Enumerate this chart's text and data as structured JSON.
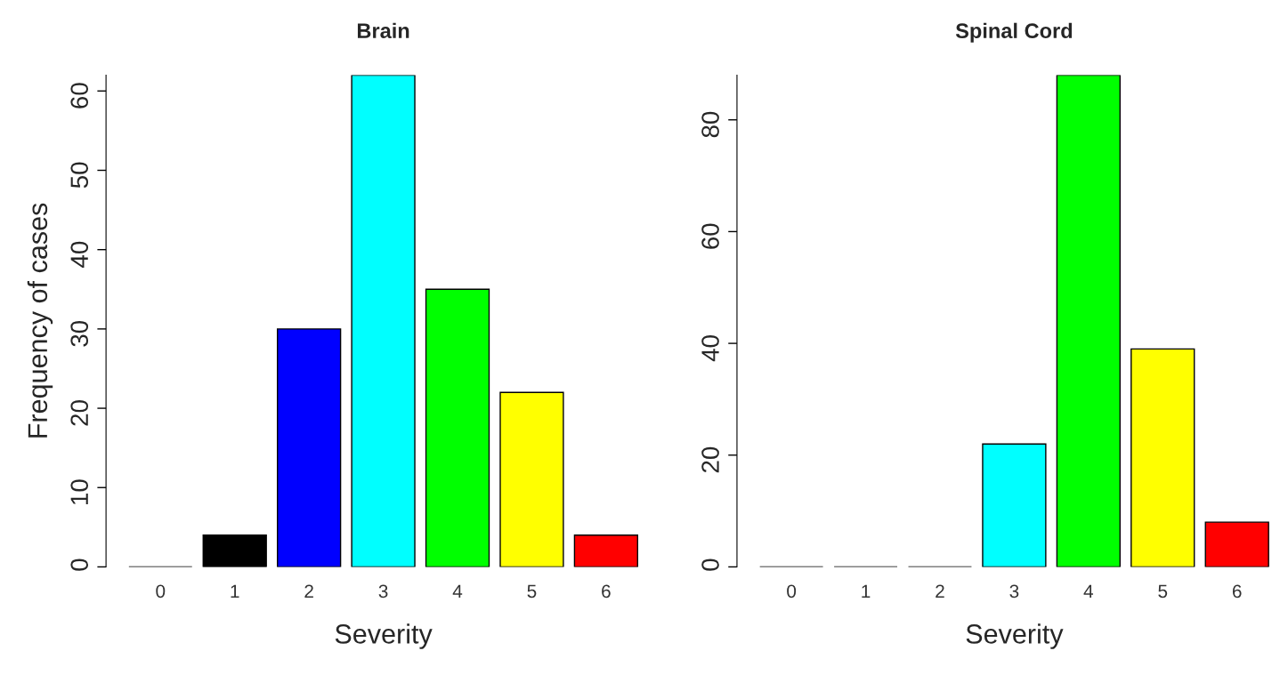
{
  "chart_data": [
    {
      "type": "bar",
      "title": "Brain",
      "xlabel": "Severity",
      "ylabel": "Frequency of cases",
      "categories": [
        "0",
        "1",
        "2",
        "3",
        "4",
        "5",
        "6"
      ],
      "values": [
        0,
        4,
        30,
        62,
        35,
        22,
        4
      ],
      "colors": [
        "#000000",
        "#000000",
        "#0000ff",
        "#00ffff",
        "#00ff00",
        "#ffff00",
        "#ff0000"
      ],
      "ylim": [
        0,
        62
      ],
      "yticks": [
        0,
        10,
        20,
        30,
        40,
        50,
        60
      ],
      "grid": false,
      "legend": false
    },
    {
      "type": "bar",
      "title": "Spinal Cord",
      "xlabel": "Severity",
      "categories": [
        "0",
        "1",
        "2",
        "3",
        "4",
        "5",
        "6"
      ],
      "values": [
        0,
        0,
        0,
        22,
        88,
        39,
        8
      ],
      "colors": [
        "#ffffff",
        "#000000",
        "#0000ff",
        "#00ffff",
        "#00ff00",
        "#ffff00",
        "#ff0000"
      ],
      "ylim": [
        0,
        88
      ],
      "yticks": [
        0,
        20,
        40,
        60,
        80
      ],
      "grid": false,
      "legend": false
    }
  ]
}
